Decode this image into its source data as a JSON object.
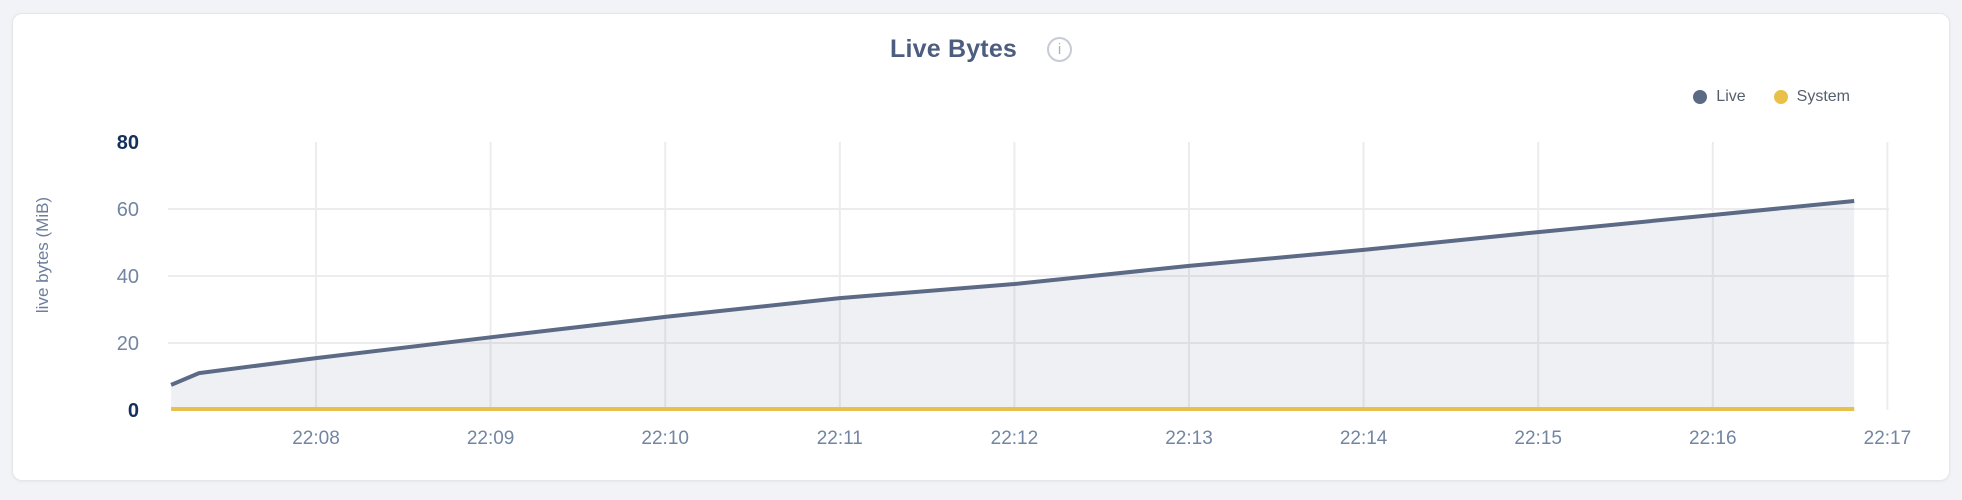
{
  "header": {
    "title": "Live Bytes",
    "info_icon_glyph": "i"
  },
  "chart_data": {
    "type": "area",
    "title": "Live Bytes",
    "xlabel": "",
    "ylabel": "live bytes (MiB)",
    "ylim": [
      0,
      80
    ],
    "grid": true,
    "legend_position": "top-right",
    "x_unit": "time (HH:MM), minutes after 22:00",
    "y_ticks": [
      {
        "value": 0,
        "label": "0",
        "emphasized": true,
        "gridline": false
      },
      {
        "value": 20,
        "label": "20",
        "emphasized": false,
        "gridline": true
      },
      {
        "value": 40,
        "label": "40",
        "emphasized": false,
        "gridline": true
      },
      {
        "value": 60,
        "label": "60",
        "emphasized": false,
        "gridline": true
      },
      {
        "value": 80,
        "label": "80",
        "emphasized": true,
        "gridline": false
      }
    ],
    "x_ticks": [
      {
        "minute": 8,
        "label": "22:08"
      },
      {
        "minute": 9,
        "label": "22:09"
      },
      {
        "minute": 10,
        "label": "22:10"
      },
      {
        "minute": 11,
        "label": "22:11"
      },
      {
        "minute": 12,
        "label": "22:12"
      },
      {
        "minute": 13,
        "label": "22:13"
      },
      {
        "minute": 14,
        "label": "22:14"
      },
      {
        "minute": 15,
        "label": "22:15"
      },
      {
        "minute": 16,
        "label": "22:16"
      },
      {
        "minute": 17,
        "label": "22:17"
      }
    ],
    "series": [
      {
        "name": "Live",
        "color": "#5c6a86",
        "area_fill": "rgba(92,106,134,0.10)",
        "points_minute_mib": [
          [
            7.17,
            7.5
          ],
          [
            7.33,
            11.0
          ],
          [
            8,
            15.5
          ],
          [
            9,
            21.7
          ],
          [
            10,
            27.8
          ],
          [
            11,
            33.4
          ],
          [
            12,
            37.6
          ],
          [
            13,
            43.0
          ],
          [
            14,
            47.8
          ],
          [
            15,
            53.1
          ],
          [
            16,
            58.2
          ],
          [
            16.81,
            62.4
          ]
        ]
      },
      {
        "name": "System",
        "color": "#e9c04a",
        "area_fill": null,
        "points_minute_mib": [
          [
            7.17,
            0.3
          ],
          [
            16.81,
            0.3
          ]
        ]
      }
    ]
  },
  "colors": {
    "page_background": "#f2f3f6",
    "card_background": "#ffffff",
    "card_border": "#e4e6e9",
    "title_text": "#4d5d80",
    "legend_text": "#565f6d",
    "tick_text": "#7285a1",
    "tick_text_emphasized": "#14305c",
    "axis_label_text": "#6c7d9b",
    "gridline": "#ececee"
  }
}
